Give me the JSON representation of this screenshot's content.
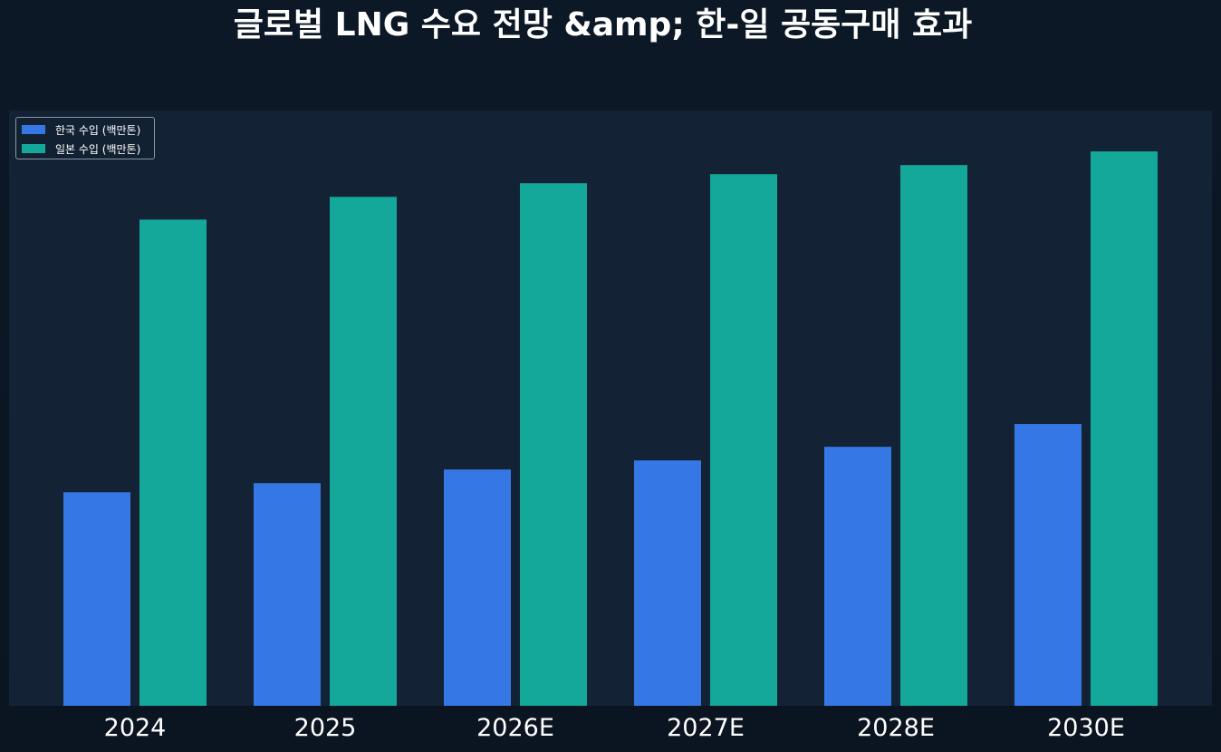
{
  "chart_data": {
    "type": "bar",
    "title": "글로벌 LNG 수요 전망 &amp; 한-일 공동구매 효과",
    "xlabel": "",
    "ylabel": "",
    "categories": [
      "2024",
      "2025",
      "2026E",
      "2027E",
      "2028E",
      "2030E"
    ],
    "series": [
      {
        "name": "한국 수입 (백만톤)",
        "color": "#3578e5",
        "values": [
          47,
          49,
          52,
          54,
          57,
          62
        ]
      },
      {
        "name": "일본 수입 (백만톤)",
        "color": "#14a89a",
        "values": [
          107,
          112,
          115,
          117,
          119,
          122
        ]
      }
    ],
    "ylim": [
      0,
      131
    ],
    "yticks_visible": false,
    "grid": false,
    "legend_position": "top-left",
    "colors": {
      "background": "#0b1521",
      "plot_background": "#132234",
      "text": "#ffffff"
    }
  }
}
